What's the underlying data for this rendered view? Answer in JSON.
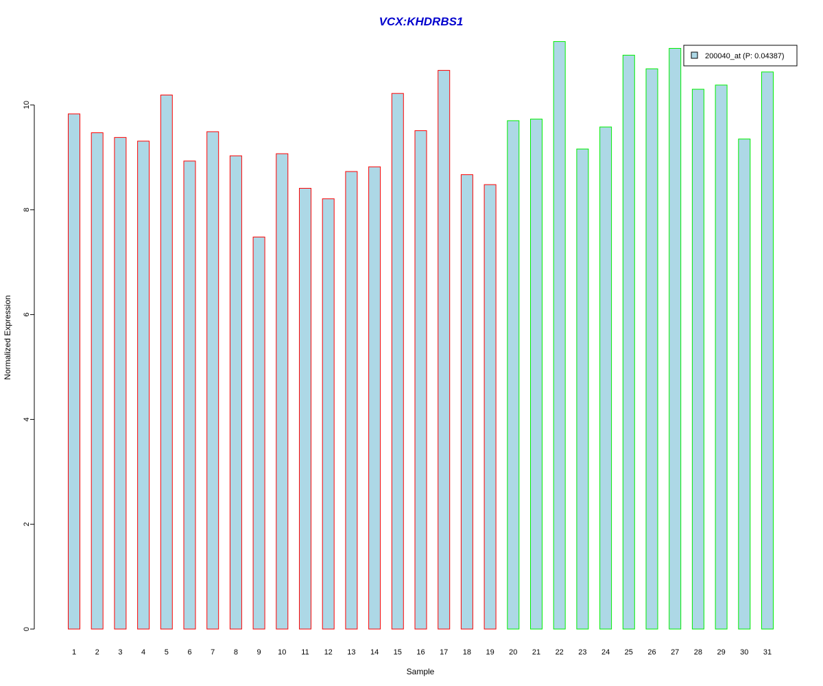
{
  "chart_data": {
    "type": "bar",
    "title": "VCX:KHDRBS1",
    "xlabel": "Sample",
    "ylabel": "Normalized Expression",
    "categories": [
      "1",
      "2",
      "3",
      "4",
      "5",
      "6",
      "7",
      "8",
      "9",
      "10",
      "11",
      "12",
      "13",
      "14",
      "15",
      "16",
      "17",
      "18",
      "19",
      "20",
      "21",
      "22",
      "23",
      "24",
      "25",
      "26",
      "27",
      "28",
      "29",
      "30",
      "31"
    ],
    "series": [
      {
        "name": "200040_at (P: 0.04387)",
        "values": [
          9.83,
          9.47,
          9.38,
          9.31,
          10.19,
          8.93,
          9.49,
          9.03,
          7.48,
          9.07,
          8.41,
          8.21,
          8.73,
          8.82,
          10.22,
          9.51,
          10.66,
          8.67,
          8.48,
          9.7,
          9.73,
          11.21,
          9.16,
          9.58,
          10.95,
          10.69,
          11.08,
          10.3,
          10.38,
          9.35,
          10.63
        ]
      }
    ],
    "group_edge_colors": [
      "#ff0000",
      "#ff0000",
      "#ff0000",
      "#ff0000",
      "#ff0000",
      "#ff0000",
      "#ff0000",
      "#ff0000",
      "#ff0000",
      "#ff0000",
      "#ff0000",
      "#ff0000",
      "#ff0000",
      "#ff0000",
      "#ff0000",
      "#ff0000",
      "#ff0000",
      "#ff0000",
      "#ff0000",
      "#00ee00",
      "#00ee00",
      "#00ee00",
      "#00ee00",
      "#00ee00",
      "#00ee00",
      "#00ee00",
      "#00ee00",
      "#00ee00",
      "#00ee00",
      "#00ee00",
      "#00ee00"
    ],
    "bar_fill": "#add8e6",
    "title_color": "#0000cd",
    "yticks": [
      0,
      2,
      4,
      6,
      8,
      10
    ],
    "ylim": [
      0,
      11.21
    ],
    "grid": false,
    "legend_position": "top-right"
  }
}
